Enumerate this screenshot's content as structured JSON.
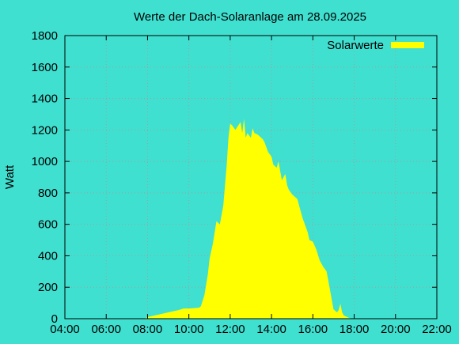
{
  "chart_data": {
    "type": "area",
    "title": "Werte der Dach-Solaranlage am 28.09.2025",
    "xlabel": "",
    "ylabel": "Watt",
    "x_ticks": [
      "04:00",
      "06:00",
      "08:00",
      "10:00",
      "12:00",
      "14:00",
      "16:00",
      "18:00",
      "20:00",
      "22:00"
    ],
    "y_ticks": [
      "0",
      "200",
      "400",
      "600",
      "800",
      "1000",
      "1200",
      "1400",
      "1600",
      "1800"
    ],
    "xlim": [
      "04:00",
      "22:00"
    ],
    "ylim": [
      0,
      1800
    ],
    "grid": true,
    "legend_position": "top-right",
    "colors": {
      "background": "#40e0d0",
      "series": "#ffff00",
      "grid": "#a0a0a0"
    },
    "series": [
      {
        "name": "Solarwerte",
        "x": [
          "07:50",
          "08:00",
          "08:30",
          "09:00",
          "09:30",
          "09:45",
          "10:00",
          "10:30",
          "10:35",
          "10:45",
          "10:55",
          "11:00",
          "11:10",
          "11:20",
          "11:30",
          "11:40",
          "11:50",
          "11:55",
          "12:00",
          "12:05",
          "12:15",
          "12:30",
          "12:35",
          "12:40",
          "12:45",
          "12:50",
          "13:00",
          "13:05",
          "13:10",
          "13:20",
          "13:30",
          "13:35",
          "13:40",
          "13:50",
          "14:00",
          "14:05",
          "14:15",
          "14:20",
          "14:30",
          "14:40",
          "14:45",
          "14:50",
          "15:00",
          "15:15",
          "15:20",
          "15:30",
          "15:35",
          "15:45",
          "15:50",
          "16:00",
          "16:10",
          "16:20",
          "16:30",
          "16:40",
          "16:45",
          "16:50",
          "17:00",
          "17:10",
          "17:15",
          "17:20",
          "17:25",
          "17:30",
          "17:35",
          "17:40",
          "17:45",
          "17:55",
          "18:00",
          "18:05",
          "18:15",
          "18:30",
          "18:40",
          "18:45"
        ],
        "values": [
          0,
          10,
          25,
          40,
          55,
          65,
          65,
          70,
          80,
          150,
          280,
          380,
          480,
          620,
          600,
          720,
          980,
          1150,
          1240,
          1230,
          1200,
          1250,
          1180,
          1270,
          1150,
          1180,
          1150,
          1210,
          1180,
          1170,
          1150,
          1140,
          1120,
          1060,
          1030,
          980,
          960,
          1000,
          880,
          920,
          850,
          820,
          790,
          760,
          720,
          640,
          610,
          550,
          500,
          490,
          440,
          370,
          330,
          300,
          240,
          180,
          60,
          40,
          55,
          95,
          40,
          20,
          15,
          10,
          5,
          0,
          0,
          0,
          0,
          0,
          0,
          0
        ]
      }
    ]
  }
}
